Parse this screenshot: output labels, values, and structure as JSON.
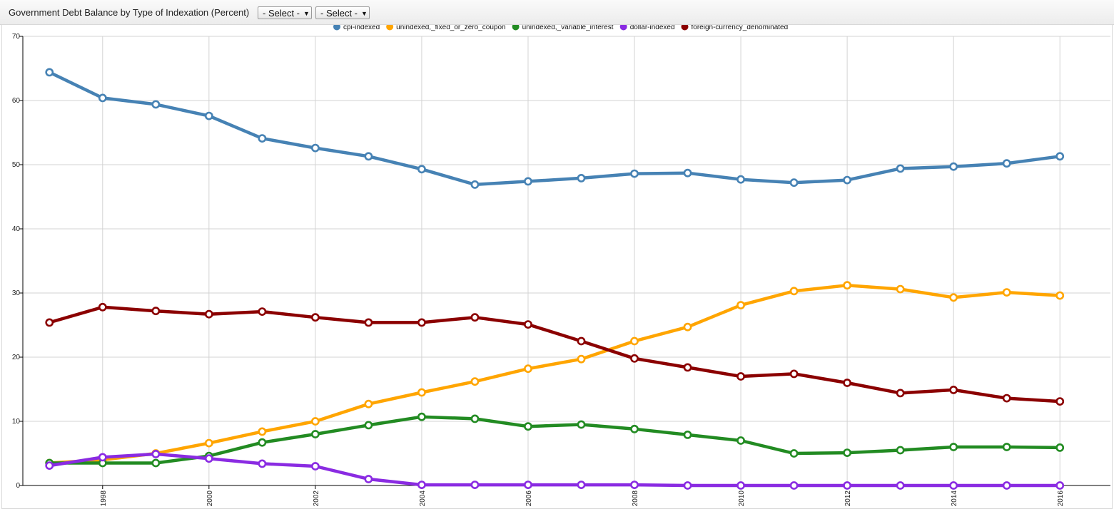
{
  "header": {
    "title": "Government Debt Balance by Type of Indexation (Percent)",
    "select1": "- Select -",
    "select2": "- Select -"
  },
  "chart_data": {
    "type": "line",
    "title": "Government Debt Balance by Type of Indexation (Percent)",
    "xlabel": "",
    "ylabel": "",
    "x": [
      1997,
      1998,
      1999,
      2000,
      2001,
      2002,
      2003,
      2004,
      2005,
      2006,
      2007,
      2008,
      2009,
      2010,
      2011,
      2012,
      2013,
      2014,
      2015,
      2016
    ],
    "xlim": [
      1996.5,
      2016.95
    ],
    "ylim": [
      0,
      70
    ],
    "xticks": [
      "1998",
      "2000",
      "2002",
      "2004",
      "2006",
      "2008",
      "2010",
      "2012",
      "2014",
      "2016"
    ],
    "yticks": [
      "0",
      "10",
      "20",
      "30",
      "40",
      "50",
      "60",
      "70"
    ],
    "grid": true,
    "legend_position": "top-center",
    "series": [
      {
        "name": "cpi-indexed",
        "color": "#4682b4",
        "values": [
          64.4,
          60.4,
          59.4,
          57.6,
          54.1,
          52.6,
          51.3,
          49.3,
          46.9,
          47.4,
          47.9,
          48.6,
          48.7,
          47.7,
          47.2,
          47.6,
          49.4,
          49.7,
          50.2,
          51.3
        ]
      },
      {
        "name": "unindexed,_fixed_or_zero_coupon",
        "color": "#ffa500",
        "values": [
          3.5,
          4.0,
          5.0,
          6.6,
          8.4,
          10.0,
          12.7,
          14.5,
          16.2,
          18.2,
          19.7,
          22.5,
          24.7,
          28.1,
          30.3,
          31.2,
          30.6,
          29.3,
          30.1,
          29.6
        ]
      },
      {
        "name": "unindexed,_variable_interest",
        "color": "#228b22",
        "values": [
          3.5,
          3.5,
          3.5,
          4.6,
          6.7,
          8.0,
          9.4,
          10.7,
          10.4,
          9.2,
          9.5,
          8.8,
          7.9,
          7.0,
          5.0,
          5.1,
          5.5,
          6.0,
          6.0,
          5.9
        ]
      },
      {
        "name": "dollar-indexed",
        "color": "#8a2be2",
        "values": [
          3.1,
          4.4,
          4.9,
          4.2,
          3.4,
          3.0,
          1.0,
          0.1,
          0.1,
          0.1,
          0.1,
          0.1,
          0.0,
          0.0,
          0.0,
          0.0,
          0.0,
          0.0,
          0.0,
          0.0
        ]
      },
      {
        "name": "foreign-currency_denominated",
        "color": "#8b0000",
        "values": [
          25.4,
          27.8,
          27.2,
          26.7,
          27.1,
          26.2,
          25.4,
          25.4,
          26.2,
          25.1,
          22.5,
          19.8,
          18.4,
          17.0,
          17.4,
          16.0,
          14.4,
          14.9,
          13.6,
          13.1
        ]
      }
    ]
  }
}
